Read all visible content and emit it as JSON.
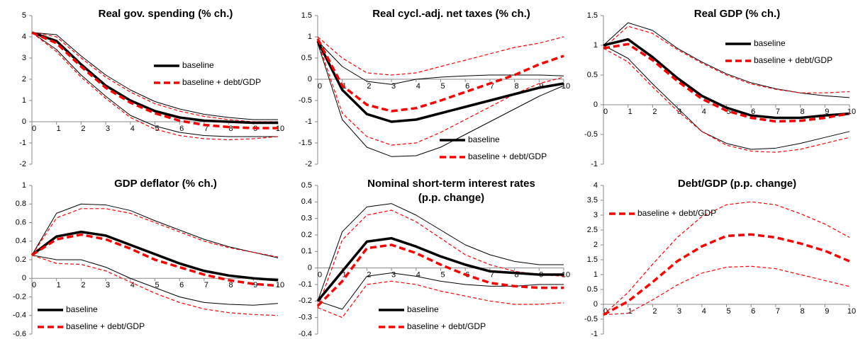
{
  "chart_data": [
    {
      "type": "line",
      "title": [
        "Real gov. spending (% ch.)"
      ],
      "x": [
        0,
        1,
        2,
        3,
        4,
        5,
        6,
        7,
        8,
        9,
        10
      ],
      "xlim": [
        0,
        10
      ],
      "xticks": [
        0,
        1,
        2,
        3,
        4,
        5,
        6,
        7,
        8,
        9,
        10
      ],
      "ylim": [
        -2,
        5
      ],
      "yticks": [
        -2,
        -1,
        0,
        1,
        2,
        3,
        4,
        5
      ],
      "legend": "center right",
      "series": [
        {
          "color": "#000000",
          "style": "thin",
          "values": [
            4.2,
            4.1,
            3.1,
            2.2,
            1.5,
            0.95,
            0.6,
            0.35,
            0.2,
            0.1,
            0.1
          ]
        },
        {
          "color": "#000000",
          "style": "thin",
          "values": [
            4.2,
            3.4,
            2.2,
            1.2,
            0.3,
            -0.2,
            -0.5,
            -0.65,
            -0.7,
            -0.7,
            -0.7
          ]
        },
        {
          "color": "#ff0000",
          "style": "thin-dash",
          "values": [
            4.2,
            4.0,
            3.0,
            2.1,
            1.4,
            0.85,
            0.5,
            0.25,
            0.1,
            0.0,
            0.0
          ]
        },
        {
          "color": "#ff0000",
          "style": "thin-dash",
          "values": [
            4.2,
            3.3,
            2.1,
            1.1,
            0.2,
            -0.35,
            -0.65,
            -0.8,
            -0.85,
            -0.8,
            -0.7
          ]
        },
        {
          "name": "baseline",
          "color": "#000000",
          "style": "thick",
          "values": [
            4.2,
            3.8,
            2.7,
            1.7,
            1.0,
            0.5,
            0.2,
            0.05,
            0.0,
            -0.05,
            -0.05
          ]
        },
        {
          "name": "baseline + debt/GDP",
          "color": "#ff0000",
          "style": "thick-dash",
          "values": [
            4.2,
            3.7,
            2.6,
            1.6,
            0.9,
            0.4,
            0.05,
            -0.15,
            -0.25,
            -0.3,
            -0.3
          ]
        }
      ]
    },
    {
      "type": "line",
      "title": [
        "Real cycl.-adj. net taxes (% ch.)"
      ],
      "x": [
        0,
        1,
        2,
        3,
        4,
        5,
        6,
        7,
        8,
        9,
        10
      ],
      "xlim": [
        0,
        10
      ],
      "xticks": [
        0,
        1,
        2,
        3,
        4,
        5,
        6,
        7,
        8,
        9,
        10
      ],
      "ylim": [
        -2,
        1.5
      ],
      "yticks": [
        -2,
        -1.5,
        -1,
        -0.5,
        0,
        0.5,
        1,
        1.5
      ],
      "legend": "lower right",
      "series": [
        {
          "color": "#000000",
          "style": "thin",
          "values": [
            0.9,
            0.3,
            -0.05,
            -0.12,
            0.0,
            0.05,
            0.08,
            0.1,
            0.1,
            0.1,
            0.08
          ]
        },
        {
          "color": "#000000",
          "style": "thin",
          "values": [
            0.85,
            -0.95,
            -1.6,
            -1.82,
            -1.8,
            -1.6,
            -1.3,
            -1.0,
            -0.7,
            -0.4,
            -0.15
          ]
        },
        {
          "color": "#ff0000",
          "style": "thin-dash",
          "values": [
            1.0,
            0.5,
            0.15,
            0.1,
            0.15,
            0.3,
            0.45,
            0.6,
            0.75,
            0.85,
            1.0
          ]
        },
        {
          "color": "#ff0000",
          "style": "thin-dash",
          "values": [
            0.9,
            -0.8,
            -1.35,
            -1.55,
            -1.5,
            -1.25,
            -0.95,
            -0.65,
            -0.35,
            -0.1,
            0.05
          ]
        },
        {
          "name": "baseline",
          "color": "#000000",
          "style": "thick",
          "values": [
            0.9,
            -0.25,
            -0.82,
            -1.0,
            -0.95,
            -0.8,
            -0.65,
            -0.5,
            -0.35,
            -0.2,
            -0.1
          ]
        },
        {
          "name": "baseline + debt/GDP",
          "color": "#ff0000",
          "style": "thick-dash",
          "values": [
            0.95,
            -0.15,
            -0.6,
            -0.75,
            -0.68,
            -0.5,
            -0.3,
            -0.1,
            0.1,
            0.35,
            0.55
          ]
        }
      ]
    },
    {
      "type": "line",
      "title": [
        "Real GDP (% ch.)"
      ],
      "x": [
        0,
        1,
        2,
        3,
        4,
        5,
        6,
        7,
        8,
        9,
        10
      ],
      "xlim": [
        0,
        10
      ],
      "xticks": [
        0,
        1,
        2,
        3,
        4,
        5,
        6,
        7,
        8,
        9,
        10
      ],
      "ylim": [
        -1,
        1.5
      ],
      "yticks": [
        -1,
        -0.5,
        0,
        0.5,
        1,
        1.5
      ],
      "legend": "upper right",
      "series": [
        {
          "color": "#000000",
          "style": "thin",
          "values": [
            1.0,
            1.38,
            1.25,
            0.95,
            0.72,
            0.52,
            0.37,
            0.27,
            0.2,
            0.15,
            0.12
          ]
        },
        {
          "color": "#000000",
          "style": "thin",
          "values": [
            1.0,
            0.78,
            0.35,
            -0.05,
            -0.45,
            -0.65,
            -0.75,
            -0.73,
            -0.65,
            -0.55,
            -0.45
          ]
        },
        {
          "color": "#ff0000",
          "style": "thin-dash",
          "values": [
            0.95,
            1.32,
            1.2,
            0.93,
            0.7,
            0.5,
            0.35,
            0.26,
            0.2,
            0.2,
            0.22
          ]
        },
        {
          "color": "#ff0000",
          "style": "thin-dash",
          "values": [
            0.95,
            0.72,
            0.3,
            -0.1,
            -0.45,
            -0.68,
            -0.78,
            -0.8,
            -0.75,
            -0.65,
            -0.55
          ]
        },
        {
          "name": "baseline",
          "color": "#000000",
          "style": "thick",
          "values": [
            1.0,
            1.1,
            0.8,
            0.45,
            0.15,
            -0.05,
            -0.18,
            -0.22,
            -0.22,
            -0.18,
            -0.15
          ]
        },
        {
          "name": "baseline + debt/GDP",
          "color": "#ff0000",
          "style": "thick-dash",
          "values": [
            0.95,
            1.02,
            0.75,
            0.4,
            0.1,
            -0.1,
            -0.22,
            -0.28,
            -0.27,
            -0.22,
            -0.15
          ]
        }
      ]
    },
    {
      "type": "line",
      "title": [
        "GDP deflator (% ch.)"
      ],
      "x": [
        0,
        1,
        2,
        3,
        4,
        5,
        6,
        7,
        8,
        9,
        10
      ],
      "xlim": [
        0,
        10
      ],
      "xticks": [
        0,
        1,
        2,
        3,
        4,
        5,
        6,
        7,
        8,
        9,
        10
      ],
      "ylim": [
        -0.6,
        1
      ],
      "yticks": [
        -0.6,
        -0.4,
        -0.2,
        0,
        0.2,
        0.4,
        0.6,
        0.8,
        1
      ],
      "legend": "lower left",
      "series": [
        {
          "color": "#000000",
          "style": "thin",
          "values": [
            0.25,
            0.7,
            0.8,
            0.79,
            0.73,
            0.62,
            0.52,
            0.42,
            0.34,
            0.28,
            0.22
          ]
        },
        {
          "color": "#000000",
          "style": "thin",
          "values": [
            0.25,
            0.2,
            0.2,
            0.12,
            0.0,
            -0.1,
            -0.2,
            -0.26,
            -0.28,
            -0.29,
            -0.27
          ]
        },
        {
          "color": "#ff0000",
          "style": "thin-dash",
          "values": [
            0.25,
            0.65,
            0.75,
            0.75,
            0.7,
            0.6,
            0.5,
            0.4,
            0.33,
            0.28,
            0.23
          ]
        },
        {
          "color": "#ff0000",
          "style": "thin-dash",
          "values": [
            0.25,
            0.16,
            0.15,
            0.08,
            -0.04,
            -0.16,
            -0.26,
            -0.33,
            -0.37,
            -0.39,
            -0.4
          ]
        },
        {
          "name": "baseline",
          "color": "#000000",
          "style": "thick",
          "values": [
            0.25,
            0.45,
            0.5,
            0.46,
            0.36,
            0.26,
            0.16,
            0.08,
            0.03,
            0.0,
            -0.02
          ]
        },
        {
          "name": "baseline + debt/GDP",
          "color": "#ff0000",
          "style": "thick-dash",
          "values": [
            0.25,
            0.42,
            0.47,
            0.42,
            0.32,
            0.2,
            0.12,
            0.04,
            -0.02,
            -0.06,
            -0.08
          ]
        }
      ]
    },
    {
      "type": "line",
      "title": [
        "Nominal short-term interest rates",
        "(p.p. change)"
      ],
      "x": [
        0,
        1,
        2,
        3,
        4,
        5,
        6,
        7,
        8,
        9,
        10
      ],
      "xlim": [
        0,
        10
      ],
      "xticks": [
        0,
        1,
        2,
        3,
        4,
        5,
        6,
        7,
        8,
        9,
        10
      ],
      "ylim": [
        -0.4,
        0.5
      ],
      "yticks": [
        -0.4,
        -0.3,
        -0.2,
        -0.1,
        0,
        0.1,
        0.2,
        0.3,
        0.4,
        0.5
      ],
      "legend": "lower center",
      "series": [
        {
          "color": "#000000",
          "style": "thin",
          "values": [
            -0.2,
            0.22,
            0.37,
            0.39,
            0.32,
            0.23,
            0.14,
            0.08,
            0.04,
            0.02,
            0.02
          ]
        },
        {
          "color": "#000000",
          "style": "thin",
          "values": [
            -0.2,
            -0.25,
            -0.05,
            -0.03,
            -0.05,
            -0.08,
            -0.1,
            -0.11,
            -0.11,
            -0.1,
            -0.1
          ]
        },
        {
          "color": "#ff0000",
          "style": "thin-dash",
          "values": [
            -0.24,
            0.17,
            0.32,
            0.35,
            0.28,
            0.18,
            0.08,
            0.02,
            -0.02,
            -0.04,
            -0.05
          ]
        },
        {
          "color": "#ff0000",
          "style": "thin-dash",
          "values": [
            -0.24,
            -0.3,
            -0.1,
            -0.08,
            -0.1,
            -0.14,
            -0.17,
            -0.2,
            -0.22,
            -0.22,
            -0.21
          ]
        },
        {
          "name": "baseline",
          "color": "#000000",
          "style": "thick",
          "values": [
            -0.2,
            -0.02,
            0.16,
            0.18,
            0.13,
            0.07,
            0.02,
            -0.02,
            -0.03,
            -0.04,
            -0.04
          ]
        },
        {
          "name": "baseline + debt/GDP",
          "color": "#ff0000",
          "style": "thick-dash",
          "values": [
            -0.23,
            -0.08,
            0.12,
            0.14,
            0.09,
            0.02,
            -0.04,
            -0.09,
            -0.11,
            -0.12,
            -0.12
          ]
        }
      ]
    },
    {
      "type": "line",
      "title": [
        "Debt/GDP (p.p. change)"
      ],
      "x": [
        0,
        1,
        2,
        3,
        4,
        5,
        6,
        7,
        8,
        9,
        10
      ],
      "xlim": [
        0,
        10
      ],
      "xticks": [
        0,
        1,
        2,
        3,
        4,
        5,
        6,
        7,
        8,
        9,
        10
      ],
      "ylim": [
        -1,
        4
      ],
      "yticks": [
        -1,
        -0.5,
        0,
        0.5,
        1,
        1.5,
        2,
        2.5,
        3,
        3.5,
        4
      ],
      "legend": "upper left",
      "series": [
        {
          "color": "#ff0000",
          "style": "thin-dash",
          "values": [
            -0.35,
            0.4,
            1.35,
            2.25,
            2.95,
            3.35,
            3.45,
            3.35,
            3.05,
            2.7,
            2.25
          ]
        },
        {
          "color": "#ff0000",
          "style": "thin-dash",
          "values": [
            -0.35,
            -0.3,
            0.15,
            0.65,
            1.05,
            1.25,
            1.28,
            1.2,
            1.0,
            0.8,
            0.6
          ]
        },
        {
          "name": "baseline + debt/GDP",
          "color": "#ff0000",
          "style": "thick-dash",
          "values": [
            -0.35,
            0.1,
            0.75,
            1.45,
            1.95,
            2.3,
            2.35,
            2.25,
            2.05,
            1.8,
            1.45
          ]
        }
      ]
    }
  ]
}
